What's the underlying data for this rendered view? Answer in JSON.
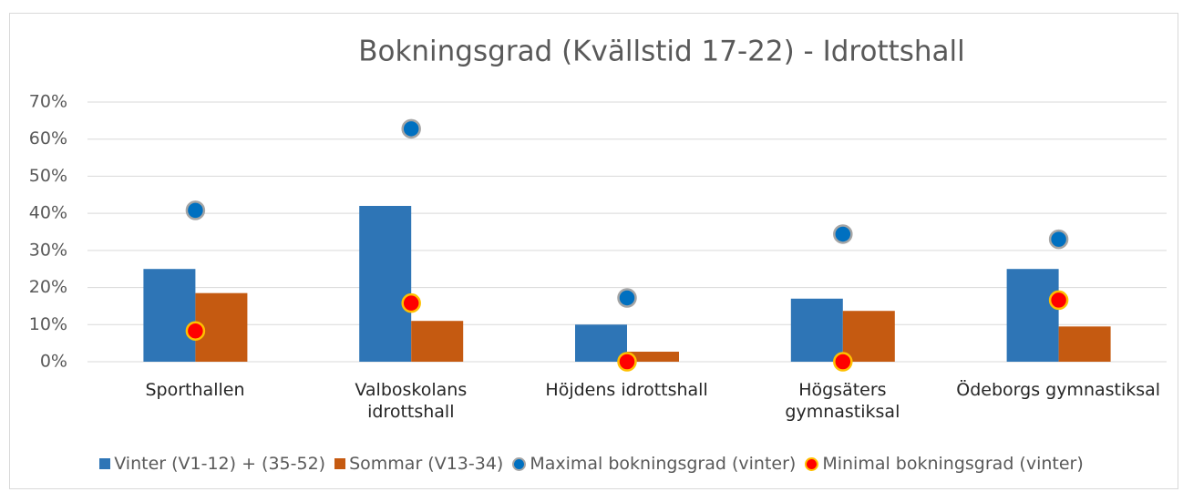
{
  "chart_data": {
    "type": "bar",
    "title": "Bokningsgrad  (Kvällstid 17-22) - Idrottshall",
    "categories": [
      "Sporthallen",
      "Valboskolans\nidrottshall",
      "Höjdens idrottshall",
      "Högsäters\ngymnastiksal",
      "Ödeborgs gymnastiksal"
    ],
    "series": [
      {
        "name": "Vinter (V1-12) + (35-52)",
        "color": "#2e75b6",
        "kind": "bar",
        "values": [
          25,
          42,
          10,
          17,
          25
        ]
      },
      {
        "name": "Sommar (V13-34)",
        "color": "#c55a11",
        "kind": "bar",
        "values": [
          18.5,
          11,
          2.7,
          13.7,
          9.5
        ]
      },
      {
        "name": "Maximal bokningsgrad (vinter)",
        "color": "#0070c0",
        "kind": "dot",
        "values": [
          40.8,
          62.8,
          17.2,
          34.4,
          33
        ]
      },
      {
        "name": "Minimal bokningsgrad (vinter)",
        "color": "#ff0000",
        "kind": "dot",
        "values": [
          8.3,
          15.8,
          0,
          0,
          16.6
        ]
      }
    ],
    "ylim": [
      0,
      70
    ],
    "yticks": [
      {
        "value": 0,
        "label": "0%"
      },
      {
        "value": 10,
        "label": "10%"
      },
      {
        "value": 20,
        "label": "20%"
      },
      {
        "value": 30,
        "label": "30%"
      },
      {
        "value": 40,
        "label": "40%"
      },
      {
        "value": 50,
        "label": "50%"
      },
      {
        "value": 60,
        "label": "60%"
      },
      {
        "value": 70,
        "label": "70%"
      }
    ],
    "grid": true,
    "legend": "bottom"
  }
}
